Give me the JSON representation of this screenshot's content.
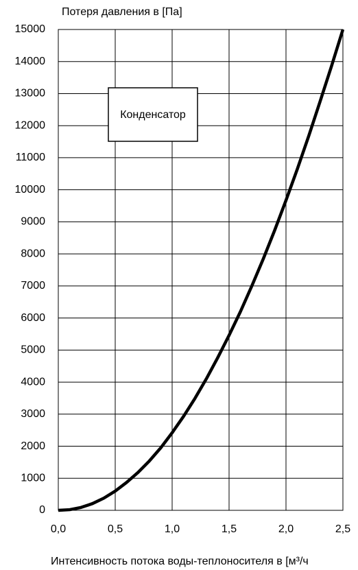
{
  "chart_data": {
    "type": "line",
    "title": "Потеря давления в [Па]",
    "x_label": "Интенсивность потока воды-теплоносителя в [м³/ч",
    "annotation": "Конденсатор",
    "x": [
      0,
      0.1,
      0.2,
      0.3,
      0.4,
      0.5,
      0.6,
      0.7,
      0.8,
      0.9,
      1.0,
      1.1,
      1.2,
      1.3,
      1.4,
      1.5,
      1.6,
      1.7,
      1.8,
      1.9,
      2.0,
      2.1,
      2.2,
      2.3,
      2.4,
      2.5
    ],
    "series": [
      {
        "name": "Конденсатор",
        "color": "#000000",
        "values": [
          0,
          20,
          90,
          210,
          380,
          600,
          870,
          1180,
          1540,
          1950,
          2420,
          2930,
          3490,
          4100,
          4760,
          5460,
          6200,
          7000,
          7840,
          8730,
          9670,
          10650,
          11680,
          12760,
          13860,
          15000
        ]
      }
    ],
    "xlim": [
      0,
      2.5
    ],
    "xticks": [
      {
        "value": 0,
        "label": "0,0"
      },
      {
        "value": 0.5,
        "label": "0,5"
      },
      {
        "value": 1.0,
        "label": "1,0"
      },
      {
        "value": 1.5,
        "label": "1,5"
      },
      {
        "value": 2.0,
        "label": "2,0"
      },
      {
        "value": 2.5,
        "label": "2,5"
      }
    ],
    "ylim": [
      0,
      15000
    ],
    "yticks": [
      0,
      1000,
      2000,
      3000,
      4000,
      5000,
      6000,
      7000,
      8000,
      9000,
      10000,
      11000,
      12000,
      13000,
      14000,
      15000
    ],
    "grid": true
  }
}
